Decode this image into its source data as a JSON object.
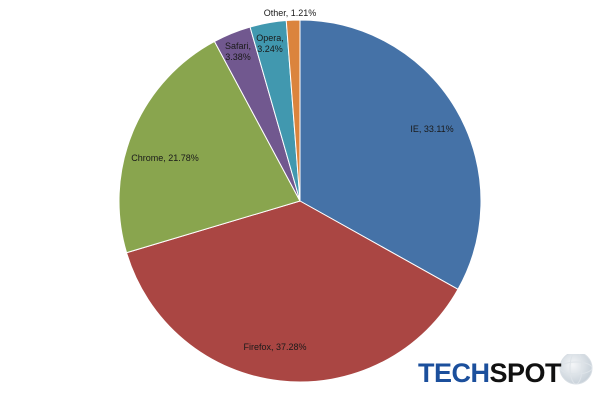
{
  "chart_data": {
    "type": "pie",
    "slices": [
      {
        "label": "IE, 33.11%",
        "value": 33.11,
        "color": "#4572a7"
      },
      {
        "label": "Firefox, 37.28%",
        "value": 37.28,
        "color": "#aa4643"
      },
      {
        "label": "Chrome, 21.78%",
        "value": 21.78,
        "color": "#89a54e"
      },
      {
        "label": "Safari, 3.38%",
        "value": 3.38,
        "color": "#71588f"
      },
      {
        "label": "Opera, 3.24%",
        "value": 3.24,
        "color": "#4198af"
      },
      {
        "label": "Other, 1.21%",
        "value": 1.21,
        "color": "#db843d"
      }
    ],
    "start_angle": "12 o'clock",
    "direction": "clockwise",
    "legend": "none"
  },
  "logo": {
    "part1": "TECH",
    "part2": "SPOT",
    "colors": {
      "part1": "#1b4f9c",
      "part2": "#111111"
    }
  }
}
